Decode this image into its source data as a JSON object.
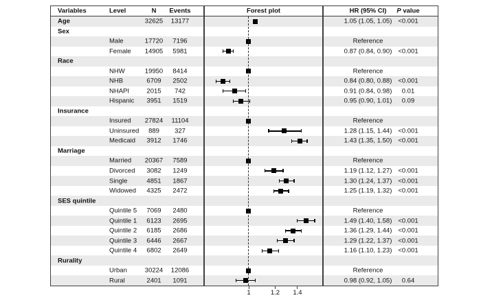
{
  "colors": {
    "background": "#ffffff",
    "stripe": "#eaeaea",
    "border": "#3f3f3f",
    "marker": "#000000",
    "text": "#111111"
  },
  "header": {
    "variables": "Variables",
    "level": "Level",
    "n": "N",
    "events": "Events",
    "forest": "Forest plot",
    "hr": "HR (95% CI)",
    "p_italic": "P",
    "p_rest": " value"
  },
  "chart_data": {
    "type": "scatter",
    "subtype": "forest-plot",
    "title": "Forest plot",
    "x_scale": "log",
    "reference_value": 1,
    "x_axis": {
      "ticks": [
        {
          "label": "1",
          "value": 1
        },
        {
          "label": "1.2",
          "value": 1.2
        },
        {
          "label": "1.4",
          "value": 1.4
        }
      ]
    },
    "rows": [
      {
        "variable": "Age",
        "n": "32625",
        "events": "13177",
        "est": 1.05,
        "lo": 1.05,
        "hi": 1.05,
        "ci": false,
        "hr_ci": "1.05 (1.05, 1.05)",
        "p": "<0.001"
      },
      {
        "variable": "Sex"
      },
      {
        "level": "Male",
        "n": "17720",
        "events": "7196",
        "est": 1.0,
        "ci": false,
        "hr_ci": "Reference",
        "p": ""
      },
      {
        "level": "Female",
        "n": "14905",
        "events": "5981",
        "est": 0.87,
        "lo": 0.84,
        "hi": 0.9,
        "ci": true,
        "hr_ci": "0.87 (0.84, 0.90)",
        "p": "<0.001"
      },
      {
        "variable": "Race"
      },
      {
        "level": "NHW",
        "n": "19950",
        "events": "8414",
        "est": 1.0,
        "ci": false,
        "hr_ci": "Reference",
        "p": ""
      },
      {
        "level": "NHB",
        "n": "6709",
        "events": "2502",
        "est": 0.84,
        "lo": 0.8,
        "hi": 0.88,
        "ci": true,
        "hr_ci": "0.84 (0.80, 0.88)",
        "p": "<0.001"
      },
      {
        "level": "NHAPI",
        "n": "2015",
        "events": "742",
        "est": 0.91,
        "lo": 0.84,
        "hi": 0.98,
        "ci": true,
        "hr_ci": "0.91 (0.84, 0.98)",
        "p": "0.01"
      },
      {
        "level": "Hispanic",
        "n": "3951",
        "events": "1519",
        "est": 0.95,
        "lo": 0.9,
        "hi": 1.01,
        "ci": true,
        "hr_ci": "0.95 (0.90, 1.01)",
        "p": "0.09"
      },
      {
        "variable": "Insurance"
      },
      {
        "level": "Insured",
        "n": "27824",
        "events": "11104",
        "est": 1.0,
        "ci": false,
        "hr_ci": "Reference",
        "p": ""
      },
      {
        "level": "Uninsured",
        "n": "889",
        "events": "327",
        "est": 1.28,
        "lo": 1.15,
        "hi": 1.44,
        "ci": true,
        "hr_ci": "1.28 (1.15, 1.44)",
        "p": "<0.001"
      },
      {
        "level": "Medicaid",
        "n": "3912",
        "events": "1746",
        "est": 1.43,
        "lo": 1.35,
        "hi": 1.5,
        "ci": true,
        "hr_ci": "1.43 (1.35, 1.50)",
        "p": "<0.001"
      },
      {
        "variable": "Marriage"
      },
      {
        "level": "Married",
        "n": "20367",
        "events": "7589",
        "est": 1.0,
        "ci": false,
        "hr_ci": "Reference",
        "p": ""
      },
      {
        "level": "Divorced",
        "n": "3082",
        "events": "1249",
        "est": 1.19,
        "lo": 1.12,
        "hi": 1.27,
        "ci": true,
        "hr_ci": "1.19 (1.12, 1.27)",
        "p": "<0.001"
      },
      {
        "level": "Single",
        "n": "4851",
        "events": "1867",
        "est": 1.3,
        "lo": 1.24,
        "hi": 1.37,
        "ci": true,
        "hr_ci": "1.30 (1.24, 1.37)",
        "p": "<0.001"
      },
      {
        "level": "Widowed",
        "n": "4325",
        "events": "2472",
        "est": 1.25,
        "lo": 1.19,
        "hi": 1.32,
        "ci": true,
        "hr_ci": "1.25 (1.19, 1.32)",
        "p": "<0.001"
      },
      {
        "variable": "SES quintile"
      },
      {
        "level": "Quintile 5",
        "n": "7069",
        "events": "2480",
        "est": 1.0,
        "ci": false,
        "hr_ci": "Reference",
        "p": ""
      },
      {
        "level": "Quintile 1",
        "n": "6123",
        "events": "2695",
        "est": 1.49,
        "lo": 1.4,
        "hi": 1.58,
        "ci": true,
        "hr_ci": "1.49 (1.40, 1.58)",
        "p": "<0.001"
      },
      {
        "level": "Quintile 2",
        "n": "6185",
        "events": "2686",
        "est": 1.36,
        "lo": 1.29,
        "hi": 1.44,
        "ci": true,
        "hr_ci": "1.36 (1.29, 1.44)",
        "p": "<0.001"
      },
      {
        "level": "Quintile 3",
        "n": "6446",
        "events": "2667",
        "est": 1.29,
        "lo": 1.22,
        "hi": 1.37,
        "ci": true,
        "hr_ci": "1.29 (1.22, 1.37)",
        "p": "<0.001"
      },
      {
        "level": "Quintile 4",
        "n": "6802",
        "events": "2649",
        "est": 1.16,
        "lo": 1.1,
        "hi": 1.23,
        "ci": true,
        "hr_ci": "1.16 (1.10, 1.23)",
        "p": "<0.001"
      },
      {
        "variable": "Rurality"
      },
      {
        "level": "Urban",
        "n": "30224",
        "events": "12086",
        "est": 1.0,
        "ci": false,
        "hr_ci": "Reference",
        "p": ""
      },
      {
        "level": "Rural",
        "n": "2401",
        "events": "1091",
        "est": 0.98,
        "lo": 0.92,
        "hi": 1.05,
        "ci": true,
        "hr_ci": "0.98 (0.92, 1.05)",
        "p": "0.64"
      }
    ]
  }
}
